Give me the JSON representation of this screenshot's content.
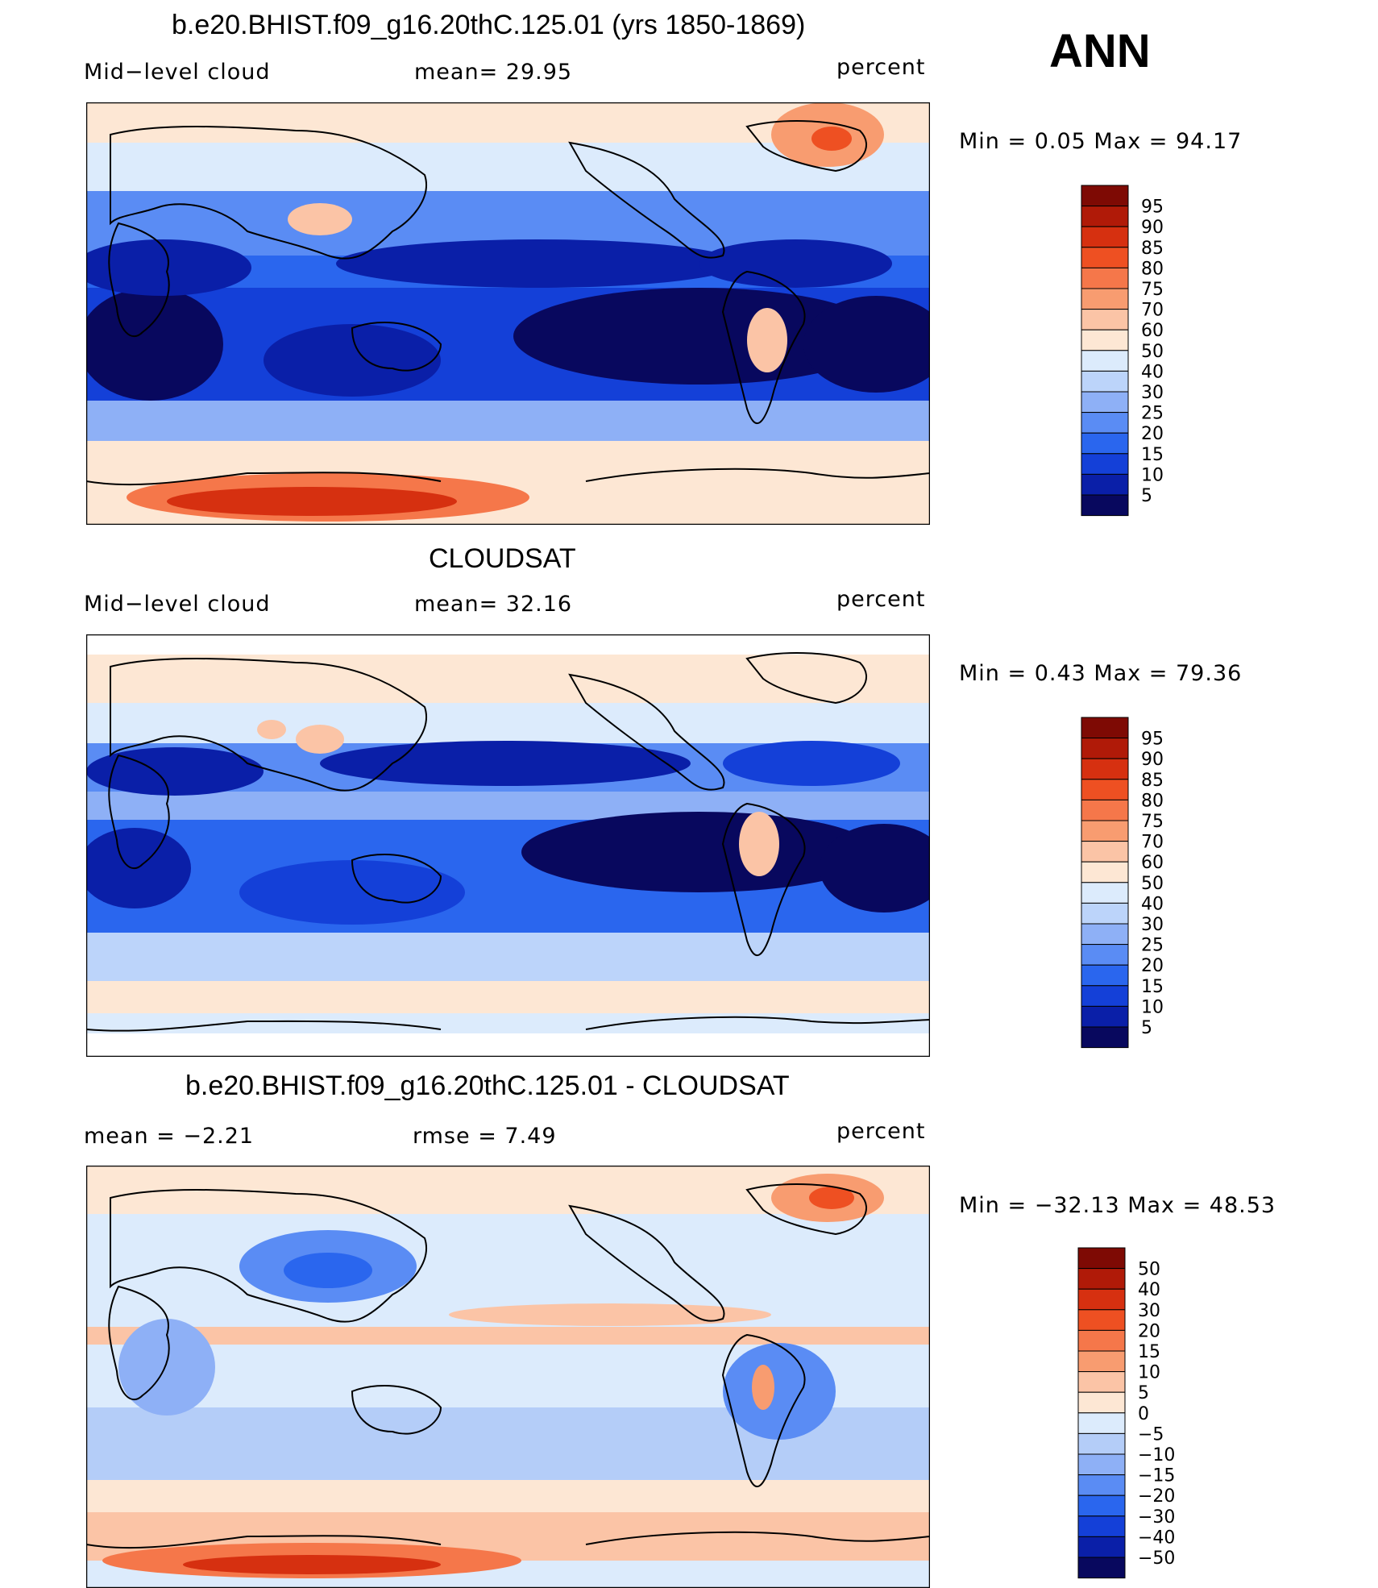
{
  "season": "ANN",
  "panels": [
    {
      "id": "model",
      "title": "b.e20.BHIST.f09_g16.20thC.125.01 (yrs 1850-1869)",
      "left_label": "Mid−level cloud",
      "center_label": "mean=   29.95",
      "units": "percent",
      "minmax": "Min  =     0.05  Max  =    94.17",
      "colorbar": {
        "colors": [
          "#08085e",
          "#0a1fa8",
          "#1440d8",
          "#2a66ee",
          "#5a8cf4",
          "#8eb0f6",
          "#bcd4fa",
          "#dcebfc",
          "#fde7d4",
          "#fbc4a6",
          "#f89c70",
          "#f5774a",
          "#ee5022",
          "#d63010",
          "#b01a08",
          "#7e0a04"
        ],
        "labels": [
          "95",
          "90",
          "85",
          "80",
          "75",
          "70",
          "60",
          "50",
          "40",
          "30",
          "25",
          "20",
          "15",
          "10",
          "5"
        ]
      }
    },
    {
      "id": "obs",
      "title": "CLOUDSAT",
      "left_label": "Mid−level cloud",
      "center_label": "mean=   32.16",
      "units": "percent",
      "minmax": "Min  =     0.43  Max  =    79.36",
      "colorbar": {
        "colors": [
          "#08085e",
          "#0a1fa8",
          "#1440d8",
          "#2a66ee",
          "#5a8cf4",
          "#8eb0f6",
          "#bcd4fa",
          "#dcebfc",
          "#fde7d4",
          "#fbc4a6",
          "#f89c70",
          "#f5774a",
          "#ee5022",
          "#d63010",
          "#b01a08",
          "#7e0a04"
        ],
        "labels": [
          "95",
          "90",
          "85",
          "80",
          "75",
          "70",
          "60",
          "50",
          "40",
          "30",
          "25",
          "20",
          "15",
          "10",
          "5"
        ]
      }
    },
    {
      "id": "diff",
      "title": "b.e20.BHIST.f09_g16.20thC.125.01 - CLOUDSAT",
      "left_label": "mean  =    −2.21",
      "center_label": "rmse  =     7.49",
      "units": "percent",
      "minmax": "Min  = −32.13  Max  =    48.53",
      "colorbar": {
        "colors": [
          "#08085e",
          "#0a1fa8",
          "#1440d8",
          "#2a66ee",
          "#5a8cf4",
          "#8eb0f6",
          "#b4cdf8",
          "#dcebfc",
          "#fde7d4",
          "#fbc4a6",
          "#f89c70",
          "#f5774a",
          "#ee5022",
          "#d63010",
          "#b01a08",
          "#7e0a04"
        ],
        "labels": [
          "50",
          "40",
          "30",
          "20",
          "15",
          "10",
          "5",
          "0",
          "−5",
          "−10",
          "−15",
          "−20",
          "−30",
          "−40",
          "−50"
        ]
      }
    }
  ],
  "chart_data": [
    {
      "type": "heatmap",
      "title": "b.e20.BHIST.f09_g16.20thC.125.01 (yrs 1850-1869)",
      "variable": "Mid-level cloud",
      "units": "percent",
      "mean": 29.95,
      "min": 0.05,
      "max": 94.17,
      "contour_levels": [
        5,
        10,
        15,
        20,
        25,
        30,
        40,
        50,
        60,
        70,
        75,
        80,
        85,
        90,
        95
      ]
    },
    {
      "type": "heatmap",
      "title": "CLOUDSAT",
      "variable": "Mid-level cloud",
      "units": "percent",
      "mean": 32.16,
      "min": 0.43,
      "max": 79.36,
      "contour_levels": [
        5,
        10,
        15,
        20,
        25,
        30,
        40,
        50,
        60,
        70,
        75,
        80,
        85,
        90,
        95
      ]
    },
    {
      "type": "heatmap",
      "title": "b.e20.BHIST.f09_g16.20thC.125.01 - CLOUDSAT",
      "units": "percent",
      "mean": -2.21,
      "rmse": 7.49,
      "min": -32.13,
      "max": 48.53,
      "contour_levels": [
        -50,
        -40,
        -30,
        -20,
        -15,
        -10,
        -5,
        0,
        5,
        10,
        15,
        20,
        30,
        40,
        50
      ]
    }
  ]
}
